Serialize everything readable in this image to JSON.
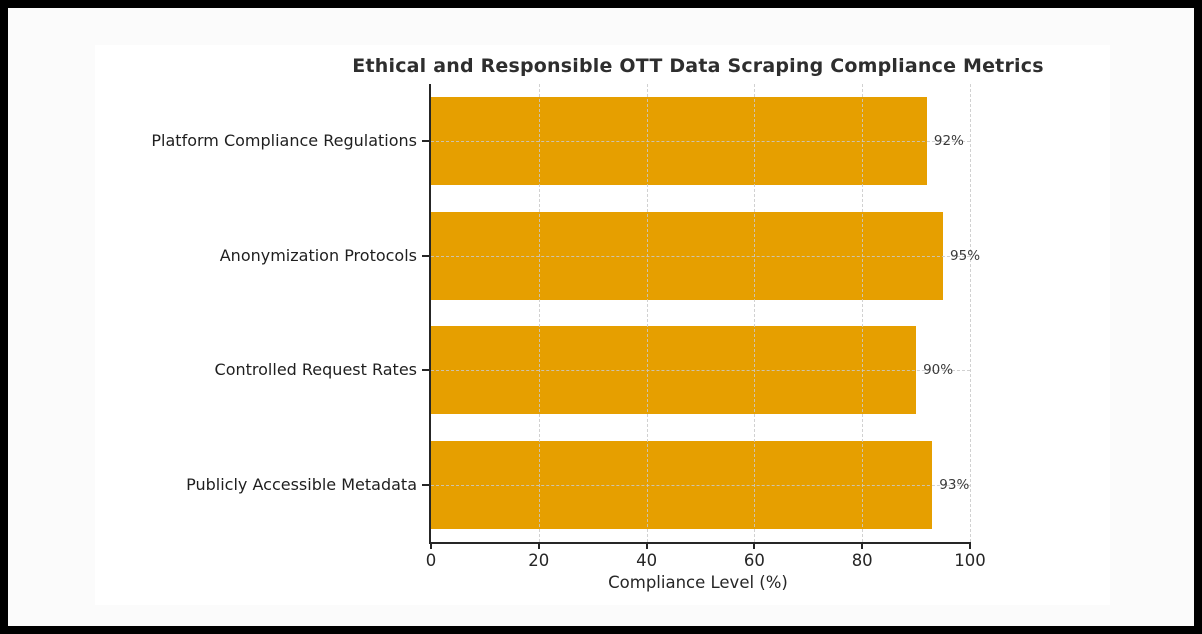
{
  "chart_data": {
    "type": "bar",
    "orientation": "horizontal",
    "title": "Ethical and Responsible OTT Data Scraping Compliance Metrics",
    "xlabel": "Compliance Level (%)",
    "ylabel": "",
    "categories": [
      "Platform Compliance Regulations",
      "Anonymization Protocols",
      "Controlled Request Rates",
      "Publicly Accessible Metadata"
    ],
    "values": [
      92,
      95,
      90,
      93
    ],
    "value_labels": [
      "92%",
      "95%",
      "90%",
      "93%"
    ],
    "xlim": [
      0,
      100
    ],
    "xticks": [
      0,
      20,
      40,
      60,
      80,
      100
    ],
    "grid": true,
    "legend": false,
    "colors": {
      "bar": "#E69F00",
      "grid": "#c9c9c9",
      "axis": "#262626",
      "title_text": "#2e2e2e",
      "tick_text": "#262626",
      "category_text": "#1f1f1f",
      "value_text": "#3a3a3a",
      "figure_background": "#ffffff",
      "page_background": "#fbfbfb",
      "frame": "#000000"
    }
  }
}
